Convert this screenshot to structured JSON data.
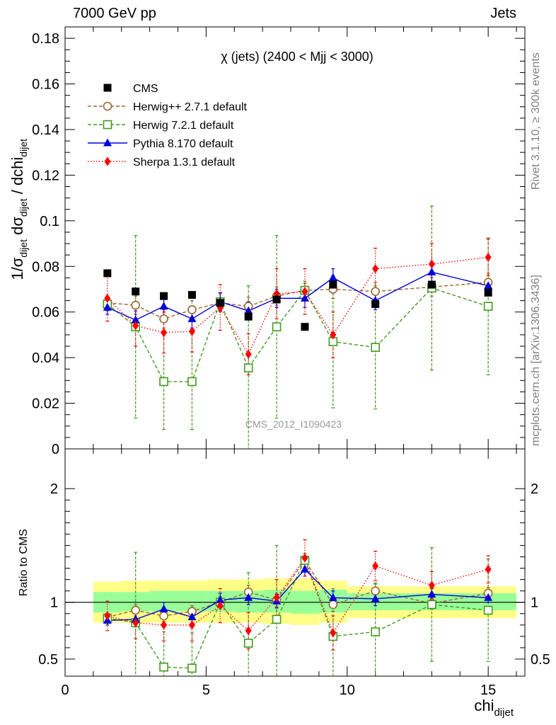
{
  "header": {
    "left": "7000 GeV pp",
    "right": "Jets"
  },
  "side_labels": {
    "rivet": "Rivet 3.1.10, ≥ 300k events",
    "mcplots": "mcplots.cern.ch [arXiv:1306.3436]"
  },
  "chart_data": [
    {
      "type": "scatter",
      "title": "χ (jets) (2400 < Mjj < 3000)",
      "watermark": "CMS_2012_I1090423",
      "ylabel_parts": {
        "base": "1/σ",
        "sub1": "dijet",
        "mid": " dσ",
        "sub2": "dijet",
        "tail": " / dchi",
        "sub3": "dijet"
      },
      "ylim": [
        0,
        0.185
      ],
      "yticks": [
        0,
        0.02,
        0.04,
        0.06,
        0.08,
        0.1,
        0.12,
        0.14,
        0.16,
        0.18
      ],
      "ytick_labels": [
        "0",
        "0.02",
        "0.04",
        "0.06",
        "0.08",
        "0.1",
        "0.12",
        "0.14",
        "0.16",
        "0.18"
      ],
      "xlim": [
        0,
        16.3
      ],
      "legend_position": "top-left",
      "series": [
        {
          "name": "CMS",
          "style": "data",
          "color": "#000000",
          "marker": "square-filled",
          "x": [
            1.5,
            2.5,
            3.5,
            4.5,
            5.5,
            6.5,
            7.5,
            8.5,
            9.5,
            11,
            13,
            15
          ],
          "y": [
            0.077,
            0.069,
            0.067,
            0.0675,
            0.064,
            0.058,
            0.0655,
            0.0535,
            0.072,
            0.0635,
            0.072,
            0.0685
          ]
        },
        {
          "name": "Herwig++ 2.7.1 default",
          "style": "dashed",
          "color": "#996633",
          "marker": "circle-open",
          "x": [
            1.5,
            2.5,
            3.5,
            4.5,
            5.5,
            6.5,
            7.5,
            8.5,
            9.5,
            11,
            13,
            15
          ],
          "y": [
            0.064,
            0.063,
            0.057,
            0.061,
            0.064,
            0.0625,
            0.067,
            0.0695,
            0.07,
            0.069,
            0.071,
            0.073
          ],
          "err": [
            0.003,
            0.004,
            0.004,
            0.004,
            0.004,
            0.004,
            0.004,
            0.003,
            0.004,
            0.004,
            0.004,
            0.004
          ]
        },
        {
          "name": "Herwig 7.2.1 default",
          "style": "dashed",
          "color": "#449922",
          "marker": "square-open",
          "x": [
            1.5,
            2.5,
            3.5,
            4.5,
            5.5,
            6.5,
            7.5,
            8.5,
            9.5,
            11,
            13,
            15
          ],
          "y": [
            0.0635,
            0.0535,
            0.0295,
            0.0295,
            0.0645,
            0.0355,
            0.0535,
            0.0695,
            0.047,
            0.0445,
            0.0705,
            0.0625
          ],
          "err": [
            0.003,
            0.04,
            0.021,
            0.021,
            0.004,
            0.036,
            0.04,
            0.004,
            0.029,
            0.027,
            0.036,
            0.03
          ]
        },
        {
          "name": "Pythia 8.170 default",
          "style": "solid",
          "color": "#0000dd",
          "marker": "triangle-filled",
          "x": [
            1.5,
            2.5,
            3.5,
            4.5,
            5.5,
            6.5,
            7.5,
            8.5,
            9.5,
            11,
            13,
            15
          ],
          "y": [
            0.062,
            0.0565,
            0.0625,
            0.057,
            0.0645,
            0.0605,
            0.066,
            0.066,
            0.075,
            0.065,
            0.0775,
            0.0715
          ],
          "err": [
            0.003,
            0.004,
            0.004,
            0.004,
            0.004,
            0.004,
            0.004,
            0.004,
            0.004,
            0.004,
            0.004,
            0.003
          ]
        },
        {
          "name": "Sherpa 1.3.1 default",
          "style": "dotted",
          "color": "#ff0000",
          "marker": "diamond-filled",
          "x": [
            1.5,
            2.5,
            3.5,
            4.5,
            5.5,
            6.5,
            7.5,
            8.5,
            9.5,
            11,
            13,
            15
          ],
          "y": [
            0.066,
            0.054,
            0.051,
            0.0515,
            0.062,
            0.0415,
            0.068,
            0.069,
            0.05,
            0.079,
            0.081,
            0.084
          ],
          "err": [
            0.01,
            0.009,
            0.009,
            0.009,
            0.01,
            0.009,
            0.011,
            0.01,
            0.01,
            0.009,
            0.009,
            0.008
          ]
        }
      ]
    },
    {
      "type": "scatter",
      "ylabel": "Ratio to CMS",
      "xlabel_parts": {
        "base": "chi",
        "sub": "dijet"
      },
      "ylim": [
        0.35,
        2.35
      ],
      "yticks": [
        0.5,
        1,
        2
      ],
      "ytick_labels": [
        "0.5",
        "1",
        "2"
      ],
      "xlim": [
        0,
        16.3
      ],
      "xticks": [
        0,
        5,
        10,
        15
      ],
      "xtick_labels": [
        "0",
        "5",
        "10",
        "15"
      ],
      "reference_line": 1,
      "uncertainty_bands": {
        "bins": [
          [
            1,
            2
          ],
          [
            2,
            3
          ],
          [
            3,
            4
          ],
          [
            4,
            5
          ],
          [
            5,
            6
          ],
          [
            6,
            7
          ],
          [
            7,
            8
          ],
          [
            8,
            9
          ],
          [
            9,
            10
          ],
          [
            10,
            12
          ],
          [
            12,
            14
          ],
          [
            14,
            16
          ]
        ],
        "stat_lo": [
          0.91,
          0.92,
          0.92,
          0.92,
          0.92,
          0.91,
          0.91,
          0.9,
          0.91,
          0.93,
          0.93,
          0.93
        ],
        "stat_hi": [
          1.09,
          1.09,
          1.1,
          1.1,
          1.1,
          1.1,
          1.11,
          1.1,
          1.11,
          1.08,
          1.08,
          1.08
        ],
        "total_lo": [
          0.82,
          0.82,
          0.82,
          0.82,
          0.82,
          0.82,
          0.81,
          0.8,
          0.82,
          0.86,
          0.86,
          0.86
        ],
        "total_hi": [
          1.18,
          1.19,
          1.19,
          1.19,
          1.2,
          1.2,
          1.21,
          1.21,
          1.19,
          1.14,
          1.14,
          1.14
        ],
        "stat_color": "#99ff99",
        "total_color": "#ffff88"
      },
      "series": [
        {
          "name": "Herwig++ 2.7.1 default",
          "x": [
            1.5,
            2.5,
            3.5,
            4.5,
            5.5,
            6.5,
            7.5,
            8.5,
            9.5,
            11,
            13,
            15
          ],
          "y": [
            0.87,
            0.93,
            0.88,
            0.92,
            1.0,
            1.09,
            1.02,
            1.37,
            0.98,
            1.1,
            0.99,
            1.08
          ],
          "err": [
            0.03,
            0.05,
            0.05,
            0.05,
            0.05,
            0.06,
            0.06,
            0.06,
            0.06,
            0.06,
            0.05,
            0.05
          ]
        },
        {
          "name": "Herwig 7.2.1 default",
          "x": [
            1.5,
            2.5,
            3.5,
            4.5,
            5.5,
            6.5,
            7.5,
            8.5,
            9.5,
            11,
            13,
            15
          ],
          "y": [
            0.86,
            0.82,
            0.43,
            0.42,
            1.0,
            0.64,
            0.85,
            1.37,
            0.7,
            0.74,
            0.98,
            0.93
          ],
          "err": [
            0.03,
            0.62,
            0.31,
            0.31,
            0.05,
            0.62,
            0.65,
            0.06,
            0.42,
            0.43,
            0.5,
            0.45
          ]
        },
        {
          "name": "Pythia 8.170 default",
          "x": [
            1.5,
            2.5,
            3.5,
            4.5,
            5.5,
            6.5,
            7.5,
            8.5,
            9.5,
            11,
            13,
            15
          ],
          "y": [
            0.84,
            0.85,
            0.94,
            0.87,
            1.02,
            1.04,
            1.01,
            1.29,
            1.04,
            1.03,
            1.07,
            1.04
          ],
          "err": [
            0.04,
            0.05,
            0.06,
            0.06,
            0.06,
            0.06,
            0.06,
            0.06,
            0.06,
            0.06,
            0.05,
            0.04
          ]
        },
        {
          "name": "Sherpa 1.3.1 default",
          "x": [
            1.5,
            2.5,
            3.5,
            4.5,
            5.5,
            6.5,
            7.5,
            8.5,
            9.5,
            11,
            13,
            15
          ],
          "y": [
            0.88,
            0.82,
            0.8,
            0.8,
            0.97,
            0.75,
            1.04,
            1.39,
            0.73,
            1.32,
            1.15,
            1.29
          ],
          "err": [
            0.13,
            0.14,
            0.14,
            0.14,
            0.15,
            0.16,
            0.16,
            0.16,
            0.15,
            0.13,
            0.12,
            0.12
          ]
        }
      ]
    }
  ]
}
